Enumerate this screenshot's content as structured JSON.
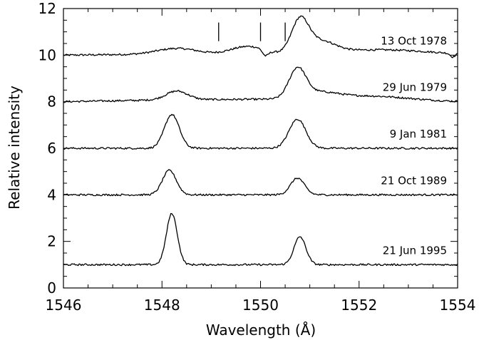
{
  "chart_data": {
    "type": "line",
    "xlabel": "Wavelength (Å)",
    "ylabel": "Relative intensity",
    "xlim": [
      1546,
      1554
    ],
    "ylim": [
      0,
      12
    ],
    "xticks": [
      1546,
      1548,
      1550,
      1552,
      1554
    ],
    "yticks": [
      0,
      2,
      4,
      6,
      8,
      10,
      12
    ],
    "grid": false,
    "legend": "none",
    "line_color": "#000000",
    "marker_lines_x": [
      1549.15,
      1550.0,
      1550.5
    ],
    "marker_lines_y_range": [
      10.6,
      11.4
    ],
    "series": [
      {
        "name": "13 Oct 1978",
        "baseline": 10.0,
        "tilt": 0.05,
        "noise": 0.04,
        "peaks": [
          {
            "center": 1548.3,
            "amp": 0.25,
            "width": 0.4
          },
          {
            "center": 1549.5,
            "amp": 0.15,
            "width": 0.25
          },
          {
            "center": 1549.85,
            "amp": 0.25,
            "width": 0.25
          },
          {
            "center": 1550.8,
            "amp": 1.35,
            "width": 0.17
          },
          {
            "center": 1551.2,
            "amp": 0.5,
            "width": 0.3
          },
          {
            "center": 1552.5,
            "amp": 0.2,
            "width": 1.0
          }
        ],
        "dips": [
          {
            "center": 1550.1,
            "amp": 0.25,
            "width": 0.06
          },
          {
            "center": 1553.9,
            "amp": 0.15,
            "width": 0.05
          }
        ]
      },
      {
        "name": "29 Jun 1979",
        "baseline": 8.0,
        "tilt": 0.1,
        "noise": 0.04,
        "peaks": [
          {
            "center": 1548.3,
            "amp": 0.38,
            "width": 0.22
          },
          {
            "center": 1550.75,
            "amp": 1.25,
            "width": 0.17
          },
          {
            "center": 1551.2,
            "amp": 0.25,
            "width": 0.35
          },
          {
            "center": 1552.2,
            "amp": 0.18,
            "width": 0.8
          }
        ],
        "dips": []
      },
      {
        "name": "9 Jan 1981",
        "baseline": 6.0,
        "tilt": 0.0,
        "noise": 0.04,
        "peaks": [
          {
            "center": 1548.2,
            "amp": 1.45,
            "width": 0.15
          },
          {
            "center": 1550.75,
            "amp": 1.25,
            "width": 0.17
          }
        ],
        "dips": []
      },
      {
        "name": "21 Oct 1989",
        "baseline": 4.0,
        "tilt": 0.0,
        "noise": 0.04,
        "peaks": [
          {
            "center": 1548.15,
            "amp": 1.05,
            "width": 0.14
          },
          {
            "center": 1550.75,
            "amp": 0.72,
            "width": 0.14
          }
        ],
        "dips": []
      },
      {
        "name": "21 Jun 1995",
        "baseline": 1.0,
        "tilt": 0.0,
        "noise": 0.04,
        "peaks": [
          {
            "center": 1548.2,
            "amp": 2.2,
            "width": 0.11
          },
          {
            "center": 1550.8,
            "amp": 1.2,
            "width": 0.12
          }
        ],
        "dips": []
      }
    ]
  }
}
